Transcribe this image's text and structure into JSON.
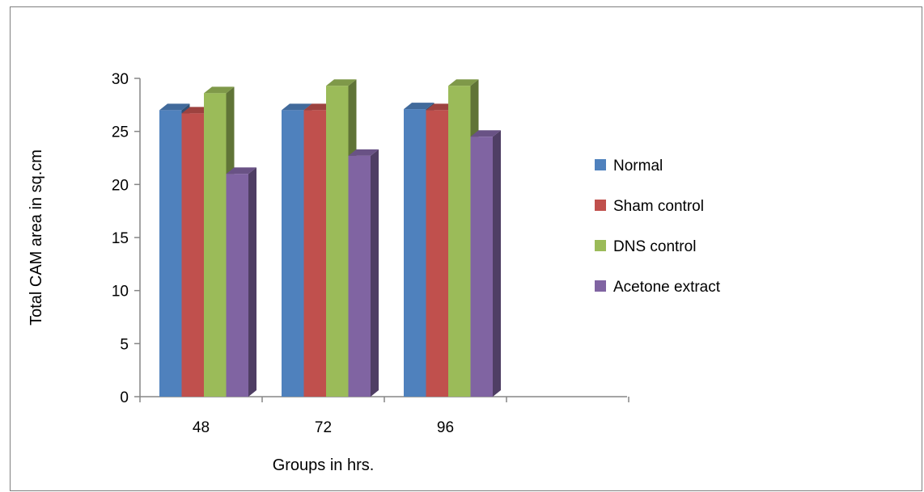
{
  "chart_data": {
    "type": "bar",
    "style": "3d-clustered-column",
    "xlabel": "Groups in hrs.",
    "ylabel": "Total CAM area in sq.cm",
    "categories": [
      "48",
      "72",
      "96"
    ],
    "ylim": [
      0,
      30
    ],
    "yticks": [
      "0",
      "5",
      "10",
      "15",
      "20",
      "25",
      "30"
    ],
    "grid": false,
    "legend_position": "right",
    "series": [
      {
        "name": "Normal",
        "color": "#4F81BD",
        "values": [
          27,
          27,
          27.1
        ]
      },
      {
        "name": "Sham control",
        "color": "#C0504D",
        "values": [
          26.7,
          27,
          27
        ]
      },
      {
        "name": "DNS control",
        "color": "#9BBB59",
        "values": [
          28.6,
          29.3,
          29.3
        ]
      },
      {
        "name": "Acetone extract",
        "color": "#8064A2",
        "values": [
          21,
          22.7,
          24.5
        ]
      }
    ]
  }
}
